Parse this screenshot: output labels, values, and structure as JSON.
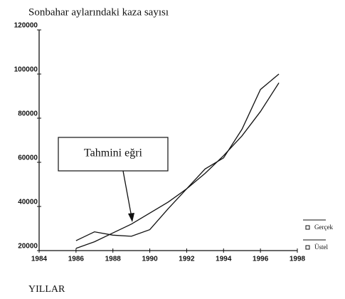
{
  "chart_data": {
    "type": "line",
    "title": "Sonbahar aylarındaki kaza sayısı",
    "x_label": "YILLAR",
    "annotation": "Tahmini eğri",
    "x": [
      1986,
      1987,
      1988,
      1989,
      1990,
      1991,
      1992,
      1993,
      1994,
      1995,
      1996,
      1997
    ],
    "series": [
      {
        "name": "Gerçek",
        "color": "#111111",
        "values": [
          24500,
          28500,
          27000,
          26500,
          29500,
          39000,
          48000,
          57000,
          62000,
          75000,
          93000,
          100000
        ]
      },
      {
        "name": "Üstel",
        "color": "#111111",
        "values": [
          21000,
          24000,
          28000,
          32000,
          37000,
          42000,
          48000,
          55000,
          63000,
          72000,
          83000,
          96000
        ]
      }
    ],
    "xlim": [
      1984,
      1998
    ],
    "xticks": [
      1984,
      1986,
      1988,
      1990,
      1992,
      1994,
      1996,
      1998
    ],
    "ylim": [
      20000,
      120000
    ],
    "yticks": [
      20000,
      40000,
      60000,
      80000,
      100000,
      120000
    ],
    "grid": false,
    "legend": "lower right"
  }
}
